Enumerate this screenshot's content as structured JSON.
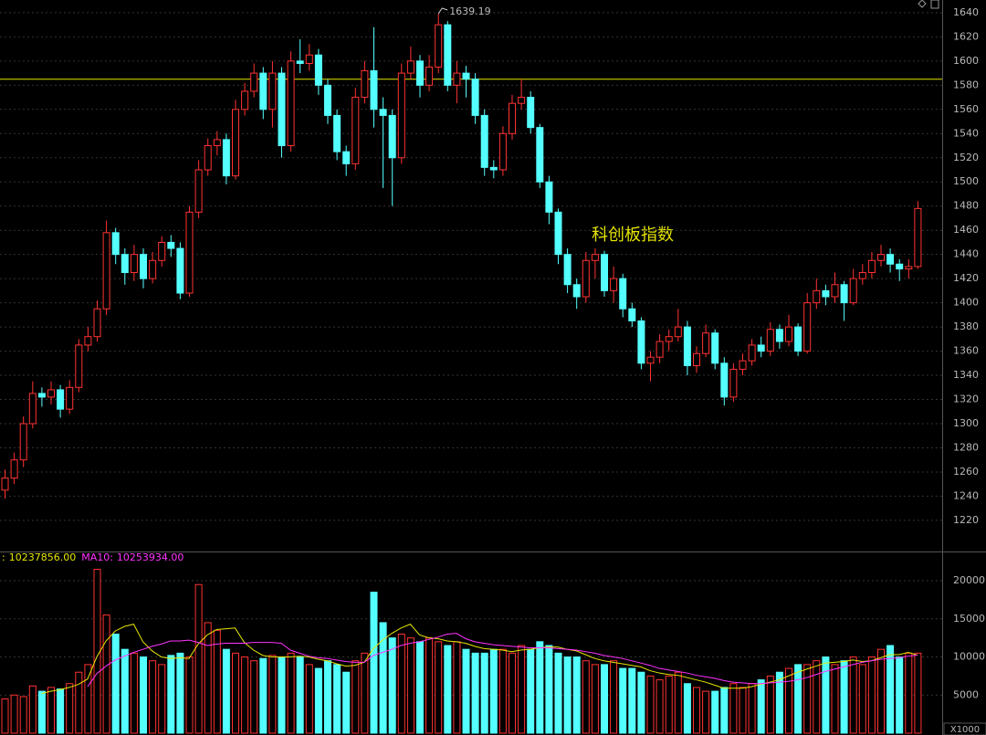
{
  "chart_data": [
    {
      "type": "candlestick",
      "title": "科创板指数",
      "open": [
        1245,
        1255,
        1270,
        1300,
        1325,
        1322,
        1328,
        1312,
        1330,
        1365,
        1372,
        1395,
        1458,
        1440,
        1425,
        1440,
        1420,
        1435,
        1450,
        1445,
        1408,
        1475,
        1510,
        1530,
        1535,
        1505,
        1560,
        1575,
        1590,
        1560,
        1590,
        1530,
        1600,
        1598,
        1605,
        1580,
        1555,
        1525,
        1515,
        1570,
        1592,
        1560,
        1555,
        1520,
        1590,
        1600,
        1580,
        1595,
        1630,
        1580,
        1590,
        1585,
        1555,
        1512,
        1510,
        1540,
        1565,
        1570,
        1545,
        1500,
        1475,
        1440,
        1415,
        1405,
        1435,
        1440,
        1410,
        1420,
        1395,
        1385,
        1350,
        1355,
        1368,
        1372,
        1380,
        1348,
        1358,
        1375,
        1350,
        1322,
        1345,
        1352,
        1365,
        1360,
        1378,
        1368,
        1380,
        1360,
        1400,
        1410,
        1405,
        1415,
        1400,
        1420,
        1425,
        1435,
        1440,
        1432,
        1428,
        1430
      ],
      "high": [
        1262,
        1276,
        1306,
        1335,
        1330,
        1335,
        1332,
        1336,
        1370,
        1380,
        1402,
        1468,
        1462,
        1445,
        1448,
        1445,
        1442,
        1455,
        1456,
        1450,
        1480,
        1518,
        1536,
        1542,
        1540,
        1568,
        1582,
        1598,
        1595,
        1600,
        1595,
        1608,
        1618,
        1614,
        1610,
        1585,
        1560,
        1530,
        1578,
        1600,
        1628,
        1570,
        1560,
        1598,
        1612,
        1605,
        1605,
        1639.19,
        1633,
        1600,
        1596,
        1590,
        1560,
        1518,
        1546,
        1572,
        1585,
        1575,
        1548,
        1505,
        1478,
        1445,
        1420,
        1442,
        1445,
        1443,
        1430,
        1424,
        1400,
        1388,
        1360,
        1374,
        1378,
        1395,
        1385,
        1364,
        1382,
        1378,
        1355,
        1350,
        1358,
        1370,
        1372,
        1384,
        1382,
        1390,
        1383,
        1408,
        1420,
        1415,
        1425,
        1418,
        1428,
        1432,
        1442,
        1448,
        1445,
        1436,
        1436,
        1484
      ],
      "low": [
        1238,
        1250,
        1264,
        1296,
        1314,
        1316,
        1305,
        1308,
        1326,
        1360,
        1368,
        1390,
        1432,
        1415,
        1418,
        1412,
        1416,
        1430,
        1438,
        1403,
        1405,
        1470,
        1505,
        1522,
        1498,
        1502,
        1555,
        1570,
        1552,
        1545,
        1520,
        1525,
        1590,
        1592,
        1572,
        1548,
        1518,
        1505,
        1510,
        1565,
        1545,
        1495,
        1480,
        1515,
        1585,
        1570,
        1575,
        1590,
        1575,
        1565,
        1570,
        1548,
        1505,
        1503,
        1505,
        1535,
        1560,
        1540,
        1495,
        1465,
        1432,
        1408,
        1395,
        1400,
        1420,
        1405,
        1400,
        1388,
        1380,
        1345,
        1335,
        1350,
        1360,
        1368,
        1340,
        1342,
        1355,
        1345,
        1315,
        1318,
        1340,
        1348,
        1355,
        1356,
        1362,
        1364,
        1356,
        1358,
        1395,
        1398,
        1400,
        1385,
        1398,
        1415,
        1420,
        1430,
        1425,
        1418,
        1420,
        1428
      ],
      "close": [
        1255,
        1270,
        1300,
        1325,
        1322,
        1328,
        1312,
        1330,
        1365,
        1372,
        1395,
        1458,
        1440,
        1425,
        1440,
        1420,
        1435,
        1450,
        1445,
        1408,
        1475,
        1510,
        1530,
        1535,
        1505,
        1560,
        1575,
        1590,
        1560,
        1590,
        1530,
        1600,
        1598,
        1605,
        1580,
        1555,
        1525,
        1515,
        1570,
        1592,
        1560,
        1555,
        1520,
        1590,
        1600,
        1580,
        1595,
        1630,
        1580,
        1590,
        1585,
        1555,
        1512,
        1510,
        1540,
        1565,
        1570,
        1545,
        1500,
        1475,
        1440,
        1415,
        1405,
        1435,
        1440,
        1410,
        1420,
        1395,
        1385,
        1350,
        1355,
        1368,
        1372,
        1380,
        1348,
        1358,
        1375,
        1350,
        1322,
        1345,
        1352,
        1365,
        1360,
        1378,
        1368,
        1380,
        1360,
        1400,
        1410,
        1405,
        1415,
        1400,
        1420,
        1425,
        1435,
        1440,
        1432,
        1428,
        1430,
        1478
      ],
      "up_color": "#ff3232",
      "down_color": "#54ffff",
      "annotation_index": 47,
      "reference_line": 1585,
      "reference_color": "#e6e600",
      "ylim": [
        1195,
        1650.5
      ],
      "yticks": [
        1220,
        1240,
        1260,
        1280,
        1300,
        1320,
        1340,
        1360,
        1380,
        1400,
        1420,
        1440,
        1460,
        1480,
        1500,
        1520,
        1540,
        1560,
        1580,
        1600,
        1620,
        1640
      ],
      "grid": true
    },
    {
      "type": "volume",
      "unit": "X1000",
      "values": [
        4500,
        5000,
        4800,
        6200,
        5500,
        6000,
        5800,
        6500,
        8000,
        9000,
        21500,
        15500,
        13000,
        11000,
        10500,
        10000,
        9500,
        9000,
        10200,
        10500,
        10000,
        19500,
        14500,
        13500,
        11000,
        10500,
        10000,
        9500,
        9800,
        10200,
        10000,
        10500,
        10000,
        9000,
        8500,
        9500,
        9000,
        8000,
        9500,
        10500,
        18500,
        14500,
        12500,
        13000,
        12500,
        12000,
        12500,
        12000,
        11500,
        12000,
        11000,
        10500,
        10500,
        11000,
        11000,
        10500,
        11500,
        11000,
        12000,
        11500,
        10500,
        10000,
        10000,
        9500,
        9000,
        9000,
        9500,
        8500,
        8500,
        8000,
        7500,
        7000,
        7500,
        8000,
        6500,
        6000,
        5500,
        5500,
        6000,
        6500,
        6000,
        6500,
        7000,
        7500,
        8000,
        8500,
        9000,
        9000,
        9500,
        10000,
        9000,
        9500,
        10000,
        9000,
        10000,
        11000,
        11500,
        10000,
        10500,
        10500
      ],
      "series": [
        {
          "name": ":",
          "color": "#e6e600",
          "last": {
            "value": 10237856,
            "label": "10237856.00"
          },
          "values": [
            null,
            null,
            null,
            null,
            5200,
            5500,
            5700,
            6000,
            6400,
            7100,
            10000,
            12100,
            13400,
            14000,
            14300,
            12000,
            10800,
            10000,
            9800,
            9900,
            9800,
            11700,
            12900,
            13600,
            13700,
            13800,
            11900,
            10900,
            10200,
            10000,
            10000,
            10000,
            10100,
            10000,
            9700,
            9500,
            9100,
            8800,
            8900,
            9300,
            11100,
            12200,
            13100,
            13800,
            14300,
            12900,
            12500,
            12400,
            12100,
            12000,
            11800,
            11400,
            11100,
            11000,
            10900,
            10700,
            10900,
            11000,
            11200,
            11300,
            11300,
            11000,
            10800,
            10300,
            9800,
            9500,
            9300,
            9100,
            8900,
            8700,
            8200,
            7900,
            7700,
            7600,
            7300,
            7000,
            6700,
            6300,
            5900,
            5900,
            5900,
            6100,
            6400,
            6700,
            7000,
            7500,
            8000,
            8400,
            8800,
            9200,
            9300,
            9400,
            9600,
            9400,
            9500,
            9900,
            10300,
            10300,
            10600,
            10238
          ]
        },
        {
          "name": "MA10:",
          "color": "#ff33ff",
          "last": {
            "value": 10253934,
            "label": "10253934.00"
          },
          "values": [
            null,
            null,
            null,
            null,
            null,
            null,
            null,
            null,
            null,
            6100,
            7800,
            8800,
            9600,
            10100,
            10600,
            11000,
            11400,
            11700,
            12100,
            12100,
            12200,
            11900,
            11500,
            11700,
            11800,
            11800,
            11800,
            11900,
            11900,
            11900,
            11800,
            10900,
            10500,
            10100,
            9900,
            9800,
            9600,
            9400,
            9300,
            9300,
            10200,
            10600,
            11000,
            11500,
            11800,
            12000,
            12300,
            12600,
            13000,
            13100,
            12400,
            12000,
            11800,
            11600,
            11500,
            11400,
            11300,
            11200,
            11200,
            11200,
            11100,
            11000,
            10900,
            10700,
            10500,
            10200,
            10000,
            9800,
            9500,
            9200,
            8900,
            8500,
            8300,
            8100,
            7900,
            7600,
            7400,
            7200,
            6900,
            6700,
            6600,
            6500,
            6500,
            6600,
            6700,
            6800,
            7000,
            7300,
            7700,
            8100,
            8400,
            8700,
            9000,
            9300,
            9500,
            9700,
            9800,
            9900,
            10100,
            10254
          ]
        }
      ],
      "ylim": [
        -240,
        23720
      ],
      "yticks": [
        5000,
        10000,
        15000,
        20000
      ],
      "grid": true
    }
  ]
}
